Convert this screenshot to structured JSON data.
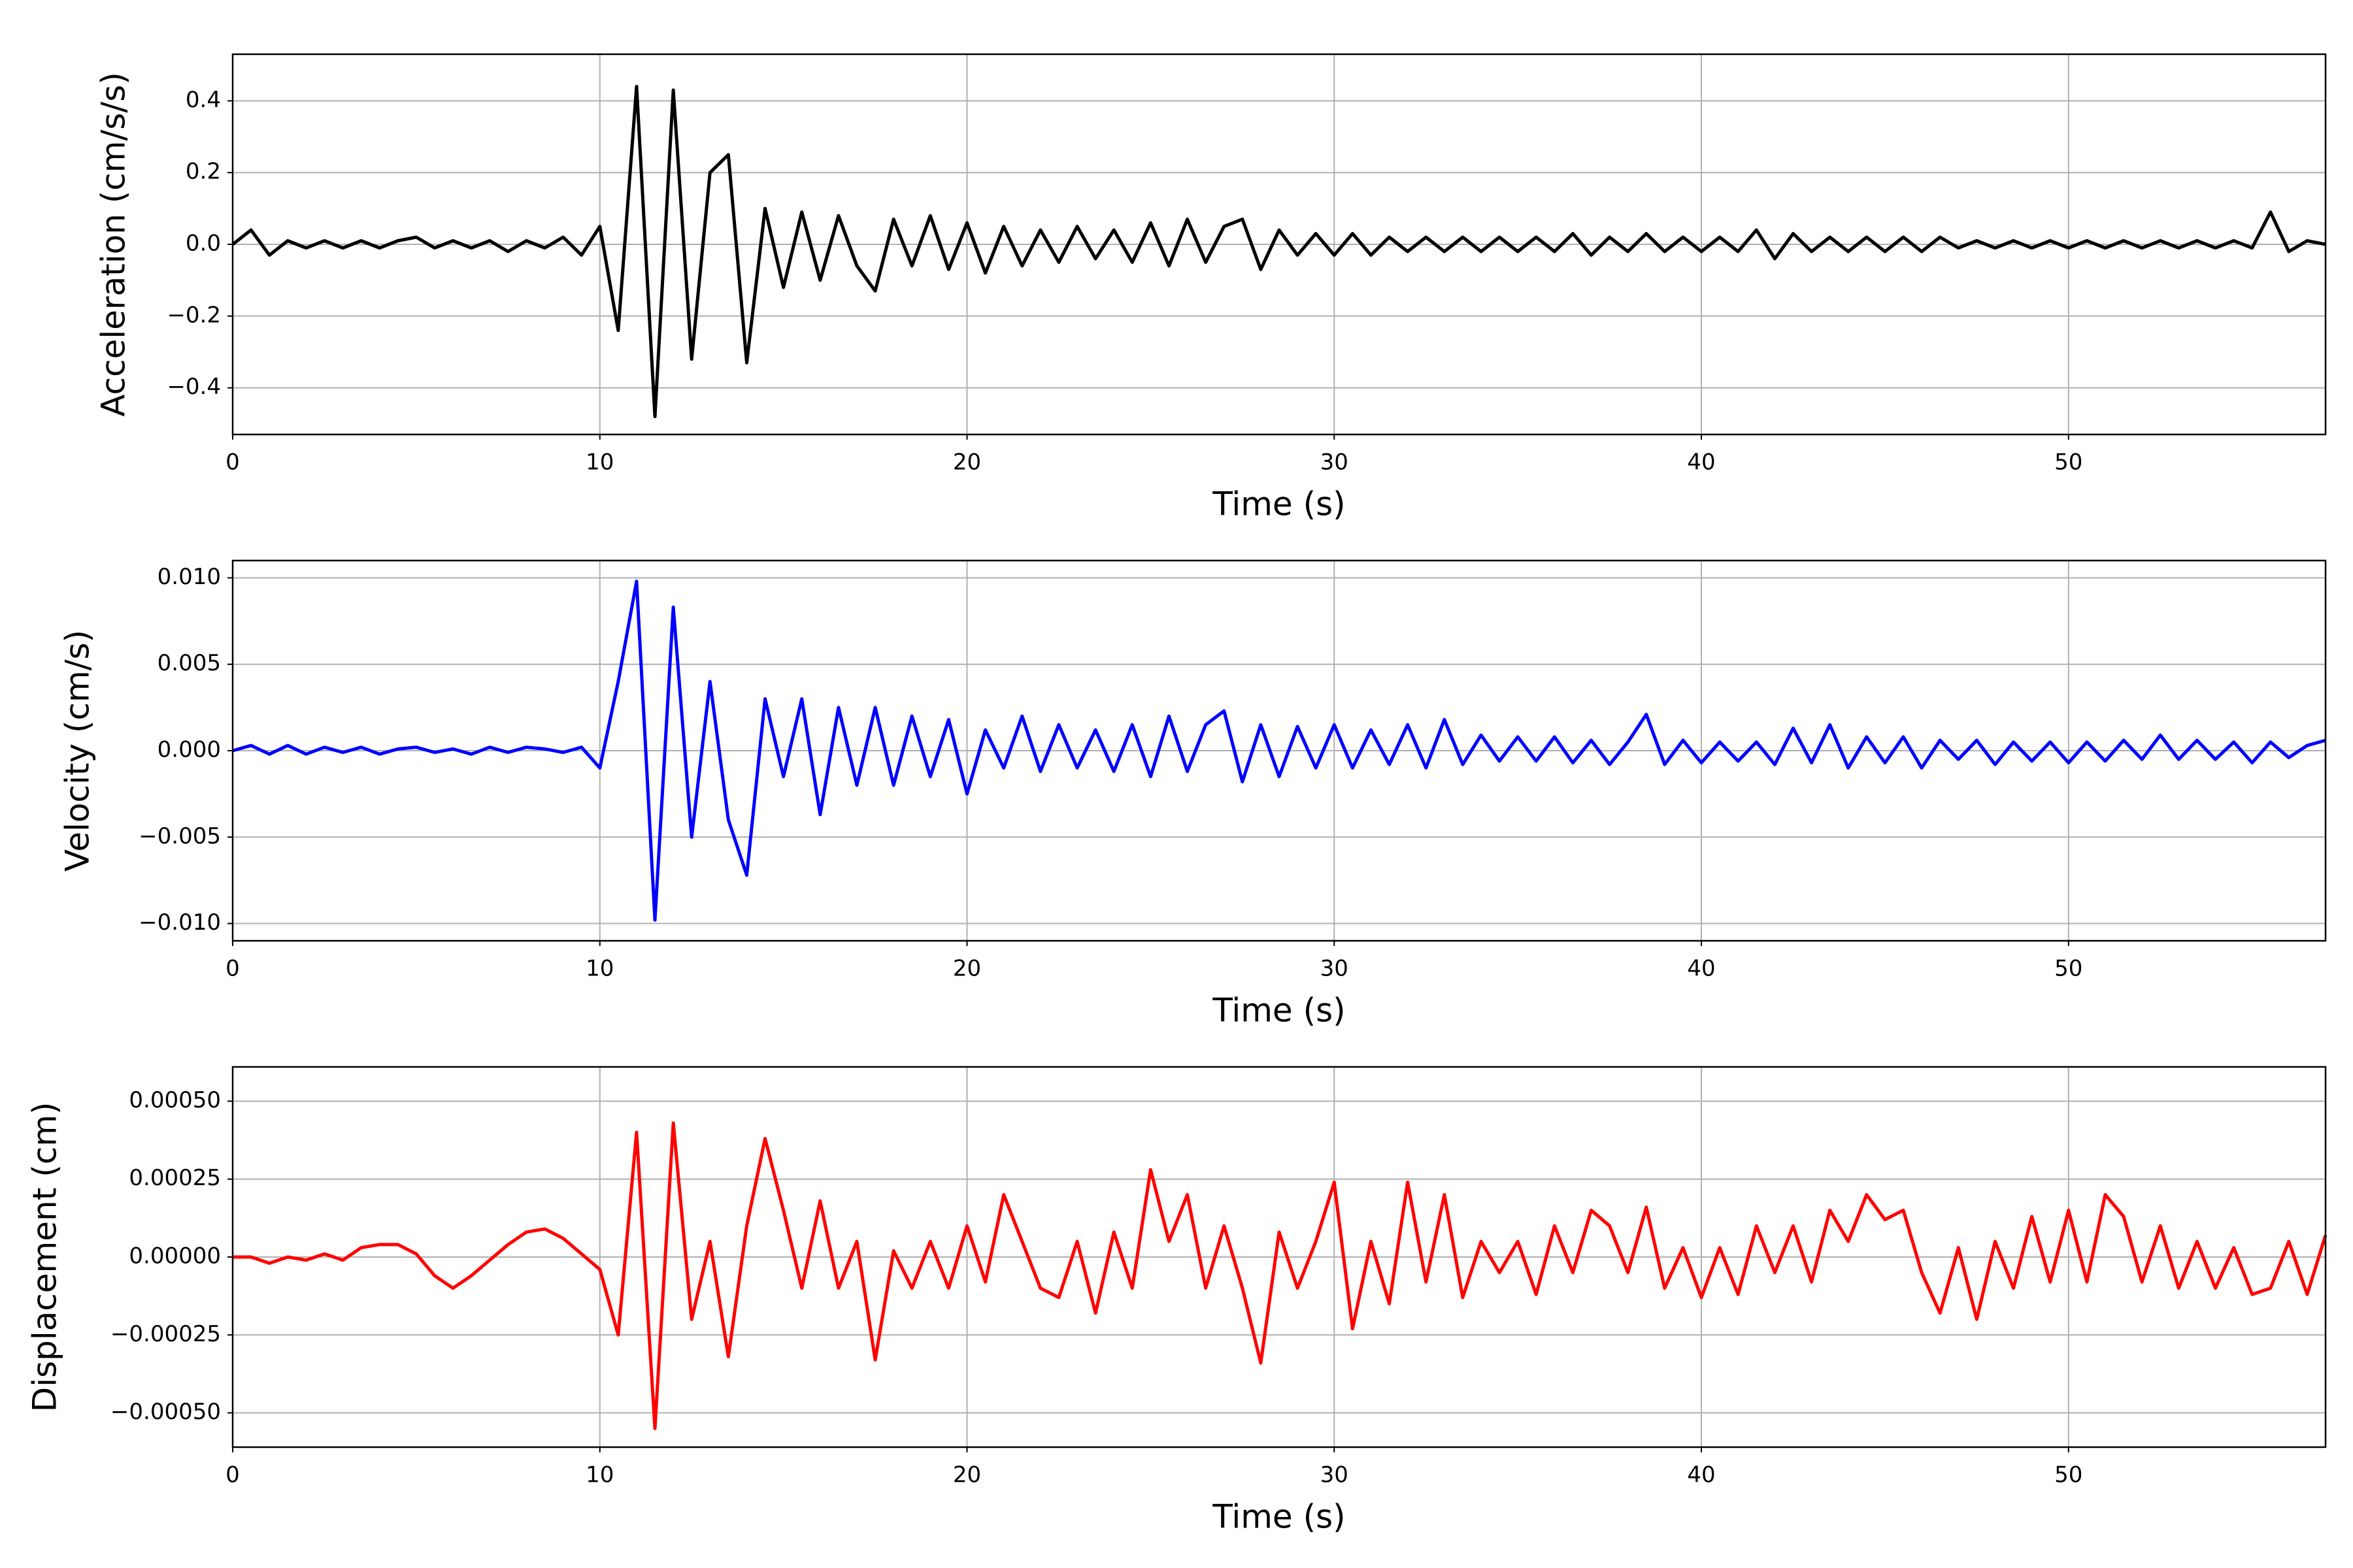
{
  "chart_data": [
    {
      "type": "line",
      "xlabel": "Time (s)",
      "ylabel": "Acceleration (cm/s/s)",
      "color": "#000000",
      "grid": true,
      "xlim": [
        0,
        57
      ],
      "xticks": [
        0,
        10,
        20,
        30,
        40,
        50
      ],
      "ylim": [
        -0.53,
        0.53
      ],
      "yticks": [
        {
          "value": -0.4,
          "label": "−0.4"
        },
        {
          "value": -0.2,
          "label": "−0.2"
        },
        {
          "value": 0,
          "label": "0.0"
        },
        {
          "value": 0.2,
          "label": "0.2"
        },
        {
          "value": 0.4,
          "label": "0.4"
        }
      ],
      "x": [
        0,
        0.5,
        1,
        1.5,
        2,
        2.5,
        3,
        3.5,
        4,
        4.5,
        5,
        5.5,
        6,
        6.5,
        7,
        7.5,
        8,
        8.5,
        9,
        9.5,
        10,
        10.5,
        11,
        11.5,
        12,
        12.5,
        13,
        13.5,
        14,
        14.5,
        15,
        15.5,
        16,
        16.5,
        17,
        17.5,
        18,
        18.5,
        19,
        19.5,
        20,
        20.5,
        21,
        21.5,
        22,
        22.5,
        23,
        23.5,
        24,
        24.5,
        25,
        25.5,
        26,
        26.5,
        27,
        27.5,
        28,
        28.5,
        29,
        29.5,
        30,
        30.5,
        31,
        31.5,
        32,
        32.5,
        33,
        33.5,
        34,
        34.5,
        35,
        35.5,
        36,
        36.5,
        37,
        37.5,
        38,
        38.5,
        39,
        39.5,
        40,
        40.5,
        41,
        41.5,
        42,
        42.5,
        43,
        43.5,
        44,
        44.5,
        45,
        45.5,
        46,
        46.5,
        47,
        47.5,
        48,
        48.5,
        49,
        49.5,
        50,
        50.5,
        51,
        51.5,
        52,
        52.5,
        53,
        53.5,
        54,
        54.5,
        55,
        55.5,
        56,
        56.5,
        57
      ],
      "values": [
        0.0,
        0.04,
        -0.03,
        0.01,
        -0.01,
        0.01,
        -0.01,
        0.01,
        -0.01,
        0.01,
        0.02,
        -0.01,
        0.01,
        -0.01,
        0.01,
        -0.02,
        0.01,
        -0.01,
        0.02,
        -0.03,
        0.05,
        -0.24,
        0.44,
        -0.48,
        0.43,
        -0.32,
        0.2,
        0.25,
        -0.33,
        0.1,
        -0.12,
        0.09,
        -0.1,
        0.08,
        -0.06,
        -0.13,
        0.07,
        -0.06,
        0.08,
        -0.07,
        0.06,
        -0.08,
        0.05,
        -0.06,
        0.04,
        -0.05,
        0.05,
        -0.04,
        0.04,
        -0.05,
        0.06,
        -0.06,
        0.07,
        -0.05,
        0.05,
        0.07,
        -0.07,
        0.04,
        -0.03,
        0.03,
        -0.03,
        0.03,
        -0.03,
        0.02,
        -0.02,
        0.02,
        -0.02,
        0.02,
        -0.02,
        0.02,
        -0.02,
        0.02,
        -0.02,
        0.03,
        -0.03,
        0.02,
        -0.02,
        0.03,
        -0.02,
        0.02,
        -0.02,
        0.02,
        -0.02,
        0.04,
        -0.04,
        0.03,
        -0.02,
        0.02,
        -0.02,
        0.02,
        -0.02,
        0.02,
        -0.02,
        0.02,
        -0.01,
        0.01,
        -0.01,
        0.01,
        -0.01,
        0.01,
        -0.01,
        0.01,
        -0.01,
        0.01,
        -0.01,
        0.01,
        -0.01,
        0.01,
        -0.01,
        0.01,
        -0.01,
        0.09,
        -0.02,
        0.01,
        0.0
      ]
    },
    {
      "type": "line",
      "xlabel": "Time (s)",
      "ylabel": "Velocity (cm/s)",
      "color": "#0000ff",
      "grid": true,
      "xlim": [
        0,
        57
      ],
      "xticks": [
        0,
        10,
        20,
        30,
        40,
        50
      ],
      "ylim": [
        -0.011,
        0.011
      ],
      "yticks": [
        {
          "value": -0.01,
          "label": "−0.010"
        },
        {
          "value": -0.005,
          "label": "−0.005"
        },
        {
          "value": 0,
          "label": "0.000"
        },
        {
          "value": 0.005,
          "label": "0.005"
        },
        {
          "value": 0.01,
          "label": "0.010"
        }
      ],
      "x": [
        0,
        0.5,
        1,
        1.5,
        2,
        2.5,
        3,
        3.5,
        4,
        4.5,
        5,
        5.5,
        6,
        6.5,
        7,
        7.5,
        8,
        8.5,
        9,
        9.5,
        10,
        10.5,
        11,
        11.5,
        12,
        12.5,
        13,
        13.5,
        14,
        14.5,
        15,
        15.5,
        16,
        16.5,
        17,
        17.5,
        18,
        18.5,
        19,
        19.5,
        20,
        20.5,
        21,
        21.5,
        22,
        22.5,
        23,
        23.5,
        24,
        24.5,
        25,
        25.5,
        26,
        26.5,
        27,
        27.5,
        28,
        28.5,
        29,
        29.5,
        30,
        30.5,
        31,
        31.5,
        32,
        32.5,
        33,
        33.5,
        34,
        34.5,
        35,
        35.5,
        36,
        36.5,
        37,
        37.5,
        38,
        38.5,
        39,
        39.5,
        40,
        40.5,
        41,
        41.5,
        42,
        42.5,
        43,
        43.5,
        44,
        44.5,
        45,
        45.5,
        46,
        46.5,
        47,
        47.5,
        48,
        48.5,
        49,
        49.5,
        50,
        50.5,
        51,
        51.5,
        52,
        52.5,
        53,
        53.5,
        54,
        54.5,
        55,
        55.5,
        56,
        56.5,
        57
      ],
      "values": [
        0,
        0.0003,
        -0.0002,
        0.0003,
        -0.0002,
        0.0002,
        -0.0001,
        0.0002,
        -0.0002,
        0.0001,
        0.0002,
        -0.0001,
        0.0001,
        -0.0002,
        0.0002,
        -0.0001,
        0.0002,
        0.0001,
        -0.0001,
        0.0002,
        -0.001,
        0.004,
        0.0098,
        -0.0098,
        0.0083,
        -0.005,
        0.004,
        -0.004,
        -0.0072,
        0.003,
        -0.0015,
        0.003,
        -0.0037,
        0.0025,
        -0.002,
        0.0025,
        -0.002,
        0.002,
        -0.0015,
        0.0018,
        -0.0025,
        0.0012,
        -0.001,
        0.002,
        -0.0012,
        0.0015,
        -0.001,
        0.0012,
        -0.0012,
        0.0015,
        -0.0015,
        0.002,
        -0.0012,
        0.0015,
        0.0023,
        -0.0018,
        0.0015,
        -0.0015,
        0.0014,
        -0.001,
        0.0015,
        -0.001,
        0.0012,
        -0.0008,
        0.0015,
        -0.001,
        0.0018,
        -0.0008,
        0.0009,
        -0.0006,
        0.0008,
        -0.0006,
        0.0008,
        -0.0007,
        0.0006,
        -0.0008,
        0.0005,
        0.0021,
        -0.0008,
        0.0006,
        -0.0007,
        0.0005,
        -0.0006,
        0.0005,
        -0.0008,
        0.0013,
        -0.0007,
        0.0015,
        -0.001,
        0.0008,
        -0.0007,
        0.0008,
        -0.001,
        0.0006,
        -0.0005,
        0.0006,
        -0.0008,
        0.0005,
        -0.0006,
        0.0005,
        -0.0007,
        0.0005,
        -0.0006,
        0.0006,
        -0.0005,
        0.0009,
        -0.0005,
        0.0006,
        -0.0005,
        0.0005,
        -0.0007,
        0.0005,
        -0.0004,
        0.0003,
        0.0006
      ]
    },
    {
      "type": "line",
      "xlabel": "Time (s)",
      "ylabel": "Displacement (cm)",
      "color": "#ff0000",
      "grid": true,
      "xlim": [
        0,
        57
      ],
      "xticks": [
        0,
        10,
        20,
        30,
        40,
        50
      ],
      "ylim": [
        -0.00061,
        0.00061
      ],
      "yticks": [
        {
          "value": -0.0005,
          "label": "−0.00050"
        },
        {
          "value": -0.00025,
          "label": "−0.00025"
        },
        {
          "value": 0,
          "label": "0.00000"
        },
        {
          "value": 0.00025,
          "label": "0.00025"
        },
        {
          "value": 0.0005,
          "label": "0.00050"
        }
      ],
      "x": [
        0,
        0.5,
        1,
        1.5,
        2,
        2.5,
        3,
        3.5,
        4,
        4.5,
        5,
        5.5,
        6,
        6.5,
        7,
        7.5,
        8,
        8.5,
        9,
        9.5,
        10,
        10.5,
        11,
        11.5,
        12,
        12.5,
        13,
        13.5,
        14,
        14.5,
        15,
        15.5,
        16,
        16.5,
        17,
        17.5,
        18,
        18.5,
        19,
        19.5,
        20,
        20.5,
        21,
        21.5,
        22,
        22.5,
        23,
        23.5,
        24,
        24.5,
        25,
        25.5,
        26,
        26.5,
        27,
        27.5,
        28,
        28.5,
        29,
        29.5,
        30,
        30.5,
        31,
        31.5,
        32,
        32.5,
        33,
        33.5,
        34,
        34.5,
        35,
        35.5,
        36,
        36.5,
        37,
        37.5,
        38,
        38.5,
        39,
        39.5,
        40,
        40.5,
        41,
        41.5,
        42,
        42.5,
        43,
        43.5,
        44,
        44.5,
        45,
        45.5,
        46,
        46.5,
        47,
        47.5,
        48,
        48.5,
        49,
        49.5,
        50,
        50.5,
        51,
        51.5,
        52,
        52.5,
        53,
        53.5,
        54,
        54.5,
        55,
        55.5,
        56,
        56.5,
        57
      ],
      "values": [
        0,
        0,
        -2e-05,
        0,
        -1e-05,
        1e-05,
        -1e-05,
        3e-05,
        4e-05,
        4e-05,
        1e-05,
        -6e-05,
        -0.0001,
        -6e-05,
        -1e-05,
        4e-05,
        8e-05,
        9e-05,
        6e-05,
        1e-05,
        -4e-05,
        -0.00025,
        0.0004,
        -0.00055,
        0.00043,
        -0.0002,
        5e-05,
        -0.00032,
        0.0001,
        0.00038,
        0.00015,
        -0.0001,
        0.00018,
        -0.0001,
        5e-05,
        -0.00033,
        2e-05,
        -0.0001,
        5e-05,
        -0.0001,
        0.0001,
        -8e-05,
        0.0002,
        5e-05,
        -0.0001,
        -0.00013,
        5e-05,
        -0.00018,
        8e-05,
        -0.0001,
        0.00028,
        5e-05,
        0.0002,
        -0.0001,
        0.0001,
        -0.0001,
        -0.00034,
        8e-05,
        -0.0001,
        5e-05,
        0.00024,
        -0.00023,
        5e-05,
        -0.00015,
        0.00024,
        -8e-05,
        0.0002,
        -0.00013,
        5e-05,
        -5e-05,
        5e-05,
        -0.00012,
        0.0001,
        -5e-05,
        0.00015,
        0.0001,
        -5e-05,
        0.00016,
        -0.0001,
        3e-05,
        -0.00013,
        3e-05,
        -0.00012,
        0.0001,
        -5e-05,
        0.0001,
        -8e-05,
        0.00015,
        5e-05,
        0.0002,
        0.00012,
        0.00015,
        -5e-05,
        -0.00018,
        3e-05,
        -0.0002,
        5e-05,
        -0.0001,
        0.00013,
        -8e-05,
        0.00015,
        -8e-05,
        0.0002,
        0.00013,
        -8e-05,
        0.0001,
        -0.0001,
        5e-05,
        -0.0001,
        3e-05,
        -0.00012,
        -0.0001,
        5e-05,
        -0.00012,
        7e-05
      ]
    }
  ]
}
